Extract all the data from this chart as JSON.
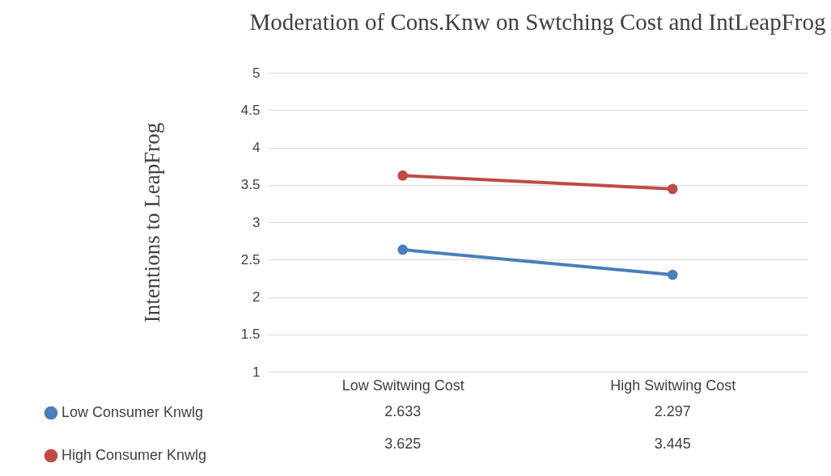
{
  "chart_data": {
    "type": "line",
    "title": "Moderation of Cons.Knw on Swtching Cost and IntLeapFrog",
    "ylabel": "Intentions to LeapFrog",
    "categories": [
      "Low Switwing Cost",
      "High Switwing Cost"
    ],
    "series": [
      {
        "name": "Low Consumer Knwlg",
        "color": "#4a7ebb",
        "values": [
          2.633,
          2.297
        ]
      },
      {
        "name": "High Consumer Knwlg",
        "color": "#be4b48",
        "values": [
          3.625,
          3.445
        ]
      }
    ],
    "ylim": [
      1,
      5
    ],
    "yticks": [
      1,
      1.5,
      2,
      2.5,
      3,
      3.5,
      4,
      4.5,
      5
    ],
    "grid": "y",
    "legend": "bottom left",
    "marker": "circle",
    "line_style": "solid",
    "data_labels": true
  }
}
